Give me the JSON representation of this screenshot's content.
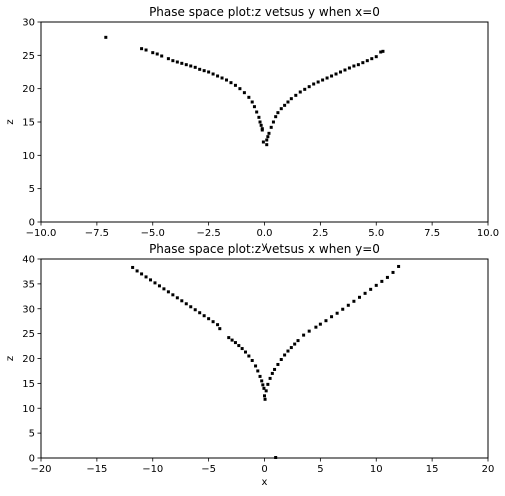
{
  "chart_data": [
    {
      "type": "scatter",
      "title": "Phase space plot:z vetsus y when x=0",
      "xlabel": "y",
      "ylabel": "z",
      "xlim": [
        -10,
        10
      ],
      "ylim": [
        0,
        30
      ],
      "xticks": [
        "−10.0",
        "−7.5",
        "−5.0",
        "−2.5",
        "0.0",
        "2.5",
        "5.0",
        "7.5",
        "10.0"
      ],
      "xtick_values": [
        -10,
        -7.5,
        -5,
        -2.5,
        0,
        2.5,
        5,
        7.5,
        10
      ],
      "yticks": [
        "0",
        "5",
        "10",
        "15",
        "20",
        "25",
        "30"
      ],
      "ytick_values": [
        0,
        5,
        10,
        15,
        20,
        25,
        30
      ],
      "grid": false,
      "marker_color": "#000000",
      "series": [
        {
          "points": [
            [
              -7.1,
              27.7
            ],
            [
              -5.5,
              26.0
            ],
            [
              -5.3,
              25.8
            ],
            [
              -5.0,
              25.4
            ],
            [
              -4.8,
              25.2
            ],
            [
              -4.6,
              24.9
            ],
            [
              -4.3,
              24.5
            ],
            [
              -4.1,
              24.2
            ],
            [
              -3.9,
              24.0
            ],
            [
              -3.7,
              23.8
            ],
            [
              -3.5,
              23.6
            ],
            [
              -3.3,
              23.4
            ],
            [
              -3.1,
              23.2
            ],
            [
              -2.9,
              22.9
            ],
            [
              -2.7,
              22.7
            ],
            [
              -2.5,
              22.5
            ],
            [
              -2.3,
              22.2
            ],
            [
              -2.1,
              21.9
            ],
            [
              -1.9,
              21.6
            ],
            [
              -1.7,
              21.3
            ],
            [
              -1.5,
              20.9
            ],
            [
              -1.3,
              20.5
            ],
            [
              -1.1,
              20.0
            ],
            [
              -0.9,
              19.4
            ],
            [
              -0.7,
              18.7
            ],
            [
              -0.55,
              18.0
            ],
            [
              -0.45,
              17.3
            ],
            [
              -0.35,
              16.5
            ],
            [
              -0.25,
              15.7
            ],
            [
              -0.2,
              15.0
            ],
            [
              -0.15,
              14.5
            ],
            [
              -0.1,
              14.0
            ],
            [
              -0.1,
              13.8
            ],
            [
              -0.05,
              12.0
            ],
            [
              0.1,
              11.6
            ],
            [
              0.1,
              12.3
            ],
            [
              0.15,
              12.8
            ],
            [
              0.2,
              13.3
            ],
            [
              0.3,
              14.2
            ],
            [
              0.4,
              15.0
            ],
            [
              0.5,
              15.8
            ],
            [
              0.6,
              16.4
            ],
            [
              0.75,
              17.0
            ],
            [
              0.9,
              17.5
            ],
            [
              1.05,
              18.0
            ],
            [
              1.2,
              18.5
            ],
            [
              1.4,
              19.0
            ],
            [
              1.6,
              19.5
            ],
            [
              1.8,
              19.9
            ],
            [
              2.0,
              20.3
            ],
            [
              2.2,
              20.7
            ],
            [
              2.4,
              21.0
            ],
            [
              2.6,
              21.3
            ],
            [
              2.8,
              21.6
            ],
            [
              3.0,
              21.9
            ],
            [
              3.2,
              22.2
            ],
            [
              3.4,
              22.5
            ],
            [
              3.6,
              22.8
            ],
            [
              3.8,
              23.1
            ],
            [
              4.0,
              23.4
            ],
            [
              4.2,
              23.6
            ],
            [
              4.4,
              23.9
            ],
            [
              4.6,
              24.2
            ],
            [
              4.8,
              24.5
            ],
            [
              5.0,
              24.8
            ],
            [
              5.2,
              25.5
            ],
            [
              5.3,
              25.6
            ]
          ]
        }
      ]
    },
    {
      "type": "scatter",
      "title": "Phase space plot:z vetsus x when y=0",
      "xlabel": "x",
      "ylabel": "z",
      "xlim": [
        -20,
        20
      ],
      "ylim": [
        0,
        40
      ],
      "xticks": [
        "−20",
        "−15",
        "−10",
        "−5",
        "0",
        "5",
        "10",
        "15",
        "20"
      ],
      "xtick_values": [
        -20,
        -15,
        -10,
        -5,
        0,
        5,
        10,
        15,
        20
      ],
      "yticks": [
        "0",
        "5",
        "10",
        "15",
        "20",
        "25",
        "30",
        "35",
        "40"
      ],
      "ytick_values": [
        0,
        5,
        10,
        15,
        20,
        25,
        30,
        35,
        40
      ],
      "grid": false,
      "marker_color": "#000000",
      "series": [
        {
          "points": [
            [
              -11.8,
              38.3
            ],
            [
              -11.4,
              37.6
            ],
            [
              -11.0,
              37.0
            ],
            [
              -10.6,
              36.4
            ],
            [
              -10.2,
              35.8
            ],
            [
              -9.8,
              35.2
            ],
            [
              -9.4,
              34.6
            ],
            [
              -9.0,
              34.0
            ],
            [
              -8.6,
              33.4
            ],
            [
              -8.2,
              32.8
            ],
            [
              -7.8,
              32.2
            ],
            [
              -7.4,
              31.6
            ],
            [
              -7.0,
              31.0
            ],
            [
              -6.6,
              30.4
            ],
            [
              -6.2,
              29.8
            ],
            [
              -5.8,
              29.2
            ],
            [
              -5.4,
              28.6
            ],
            [
              -5.0,
              28.0
            ],
            [
              -4.6,
              27.4
            ],
            [
              -4.2,
              26.8
            ],
            [
              -4.0,
              26.0
            ],
            [
              -3.2,
              24.2
            ],
            [
              -2.9,
              23.7
            ],
            [
              -2.6,
              23.2
            ],
            [
              -2.3,
              22.6
            ],
            [
              -2.0,
              22.0
            ],
            [
              -1.7,
              21.3
            ],
            [
              -1.4,
              20.5
            ],
            [
              -1.1,
              19.6
            ],
            [
              -0.8,
              18.5
            ],
            [
              -0.6,
              17.5
            ],
            [
              -0.4,
              16.4
            ],
            [
              -0.25,
              15.5
            ],
            [
              -0.15,
              14.7
            ],
            [
              -0.05,
              14.0
            ],
            [
              0.0,
              12.5
            ],
            [
              0.05,
              11.8
            ],
            [
              0.15,
              13.5
            ],
            [
              0.3,
              14.8
            ],
            [
              0.5,
              16.0
            ],
            [
              0.7,
              17.0
            ],
            [
              0.9,
              17.8
            ],
            [
              1.2,
              18.8
            ],
            [
              1.5,
              19.8
            ],
            [
              1.8,
              20.7
            ],
            [
              2.1,
              21.5
            ],
            [
              2.4,
              22.2
            ],
            [
              2.7,
              22.9
            ],
            [
              3.0,
              23.6
            ],
            [
              3.5,
              24.7
            ],
            [
              4.0,
              25.5
            ],
            [
              4.6,
              26.3
            ],
            [
              5.0,
              26.9
            ],
            [
              5.5,
              27.6
            ],
            [
              6.0,
              28.4
            ],
            [
              6.5,
              29.1
            ],
            [
              7.0,
              29.9
            ],
            [
              7.5,
              30.7
            ],
            [
              8.0,
              31.5
            ],
            [
              8.5,
              32.3
            ],
            [
              9.0,
              33.1
            ],
            [
              9.5,
              33.9
            ],
            [
              10.0,
              34.7
            ],
            [
              10.5,
              35.5
            ],
            [
              11.0,
              36.3
            ],
            [
              11.5,
              37.3
            ],
            [
              12.0,
              38.5
            ],
            [
              1.0,
              0.1
            ]
          ]
        }
      ]
    }
  ]
}
